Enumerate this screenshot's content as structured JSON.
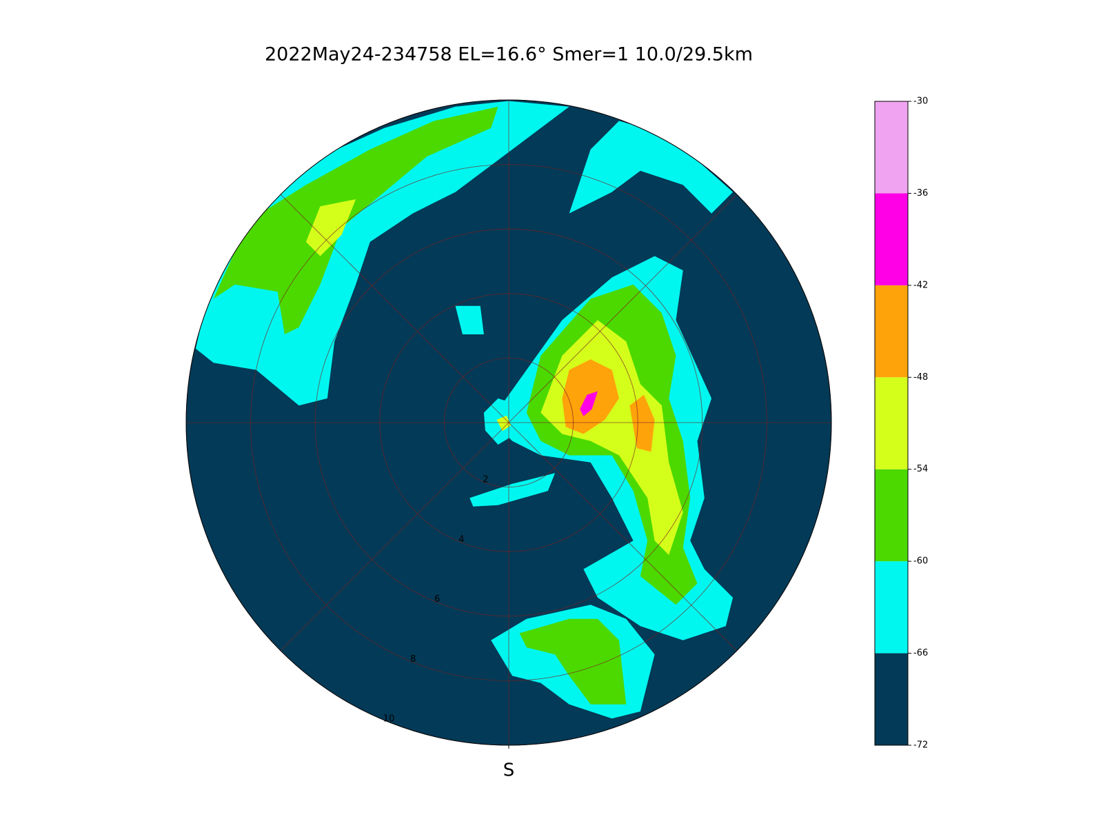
{
  "chart_data": {
    "type": "polar",
    "title": "2022May24-234758  EL=16.6°  Smer=1  10.0/29.5km",
    "theta_label": "S",
    "rlim": [
      0,
      10
    ],
    "rticks": [
      2,
      4,
      6,
      8,
      10
    ],
    "colorbar": {
      "ticks": [
        -72,
        -66,
        -60,
        -54,
        -48,
        -42,
        -36,
        -30
      ],
      "colors": [
        "#033a57",
        "#00f7f0",
        "#4cd900",
        "#d4ff1a",
        "#ffa30a",
        "#ff00e6",
        "#f0a3f0"
      ]
    }
  }
}
